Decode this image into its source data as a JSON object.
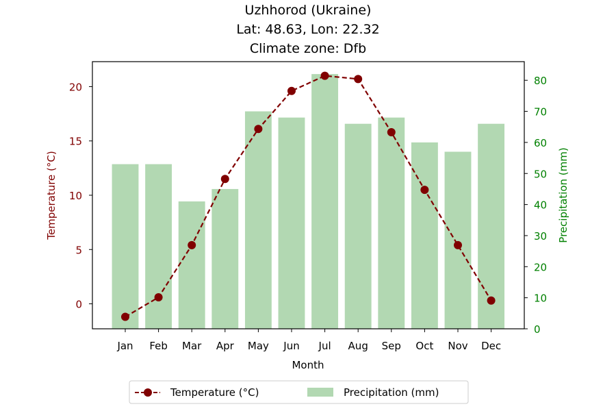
{
  "chart_data": {
    "type": "bar+line",
    "title_lines": [
      "Uzhhorod (Ukraine)",
      "Lat: 48.63, Lon: 22.32",
      "Climate zone: Dfb"
    ],
    "xlabel": "Month",
    "categories": [
      "Jan",
      "Feb",
      "Mar",
      "Apr",
      "May",
      "Jun",
      "Jul",
      "Aug",
      "Sep",
      "Oct",
      "Nov",
      "Dec"
    ],
    "temperature": {
      "name": "Temperature (°C)",
      "axis": "left",
      "ylabel": "Temperature (°C)",
      "ylim": [
        -2.3,
        22.3
      ],
      "ticks": [
        0,
        5,
        10,
        15,
        20
      ],
      "color": "#800000",
      "values": [
        -1.2,
        0.6,
        5.4,
        11.5,
        16.1,
        19.6,
        21.0,
        20.7,
        15.8,
        10.5,
        5.4,
        0.3
      ]
    },
    "precipitation": {
      "name": "Precipitation (mm)",
      "axis": "right",
      "ylabel": "Precipitation (mm)",
      "ylim": [
        0,
        86
      ],
      "ticks": [
        0,
        10,
        20,
        30,
        40,
        50,
        60,
        70,
        80
      ],
      "color": "#008000",
      "bar_color": "#b2d8b2",
      "values": [
        53,
        53,
        41,
        45,
        70,
        68,
        82,
        66,
        68,
        60,
        57,
        66
      ]
    },
    "legend_position": "bottom-center",
    "grid": false
  }
}
